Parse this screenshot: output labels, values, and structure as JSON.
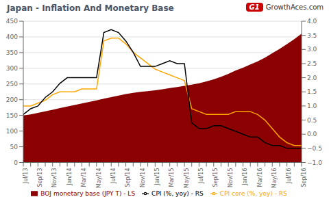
{
  "chart_data": {
    "type": "line",
    "title": "Japan - Inflation And Monetary Base",
    "categories": [
      "Jul/13",
      null,
      "Sep/13",
      null,
      "Nov/13",
      null,
      "Jan/14",
      null,
      "Mar/14",
      null,
      "May/14",
      null,
      "Jul/14",
      null,
      "Sep/14",
      null,
      "Nov/14",
      null,
      "Jan/15",
      null,
      "Mar/15",
      null,
      "May/15",
      null,
      "Jul/15",
      null,
      "Sep/15",
      null,
      "Nov/15",
      null,
      "Jan/16",
      null,
      "Mar/16",
      null,
      "May/16",
      null,
      "Jul/16",
      null,
      "Sep/16"
    ],
    "series": [
      {
        "name": "BOJ monetary base (JPY T) - LS",
        "type": "area",
        "color": "#8b0000",
        "values": [
          150,
          153,
          158,
          163,
          168,
          173,
          178,
          183,
          188,
          193,
          198,
          203,
          208,
          213,
          218,
          222,
          225,
          227,
          230,
          233,
          237,
          240,
          244,
          248,
          252,
          258,
          265,
          273,
          282,
          293,
          302,
          312,
          322,
          334,
          348,
          362,
          377,
          393,
          410
        ]
      },
      {
        "name": "CPI core (%, yoy) - RS",
        "type": "line",
        "axis": "y2",
        "color": "#ffa500",
        "values": [
          1.0,
          1.0,
          1.1,
          1.2,
          1.4,
          1.5,
          1.5,
          1.5,
          1.6,
          1.6,
          1.6,
          3.3,
          3.4,
          3.4,
          3.2,
          2.9,
          2.7,
          2.5,
          2.3,
          2.2,
          2.1,
          2.0,
          1.9,
          0.9,
          0.8,
          0.7,
          0.7,
          0.7,
          0.7,
          0.8,
          0.8,
          0.8,
          0.7,
          0.5,
          0.2,
          -0.1,
          -0.3,
          -0.4,
          -0.4
        ]
      },
      {
        "name": "CPI (%, yoy) - RS",
        "type": "line",
        "axis": "y2",
        "color": "#000000",
        "values": [
          0.7,
          0.9,
          1.0,
          1.3,
          1.5,
          1.8,
          2.0,
          2.0,
          2.0,
          2.0,
          2.0,
          3.6,
          3.7,
          3.6,
          3.3,
          2.9,
          2.4,
          2.4,
          2.4,
          2.5,
          2.6,
          2.5,
          2.5,
          0.4,
          0.2,
          0.2,
          0.3,
          0.3,
          0.2,
          0.1,
          0.0,
          -0.1,
          -0.1,
          -0.3,
          -0.4,
          -0.4,
          -0.5,
          -0.5,
          -0.5
        ]
      }
    ],
    "ylim": [
      0,
      450
    ],
    "yticks": [
      0,
      50,
      100,
      150,
      200,
      250,
      300,
      350,
      400,
      450
    ],
    "y2lim": [
      -1.0,
      4.0
    ],
    "y2ticks": [
      {
        "value": -1.0,
        "label": "−1.0"
      },
      {
        "value": -0.5,
        "label": "−0.5"
      },
      {
        "value": 0.0,
        "label": "0.0"
      },
      0.5,
      {
        "value": 1.0,
        "label": "1.0"
      },
      1.5,
      {
        "value": 2.0,
        "label": "2.0"
      },
      2.5,
      {
        "value": 3.0,
        "label": "3.0"
      },
      3.5,
      {
        "value": 4.0,
        "label": "4.0"
      }
    ],
    "grid": true,
    "legend": "bottom",
    "annotations": [
      "G1",
      "GrowthAces.com"
    ]
  }
}
